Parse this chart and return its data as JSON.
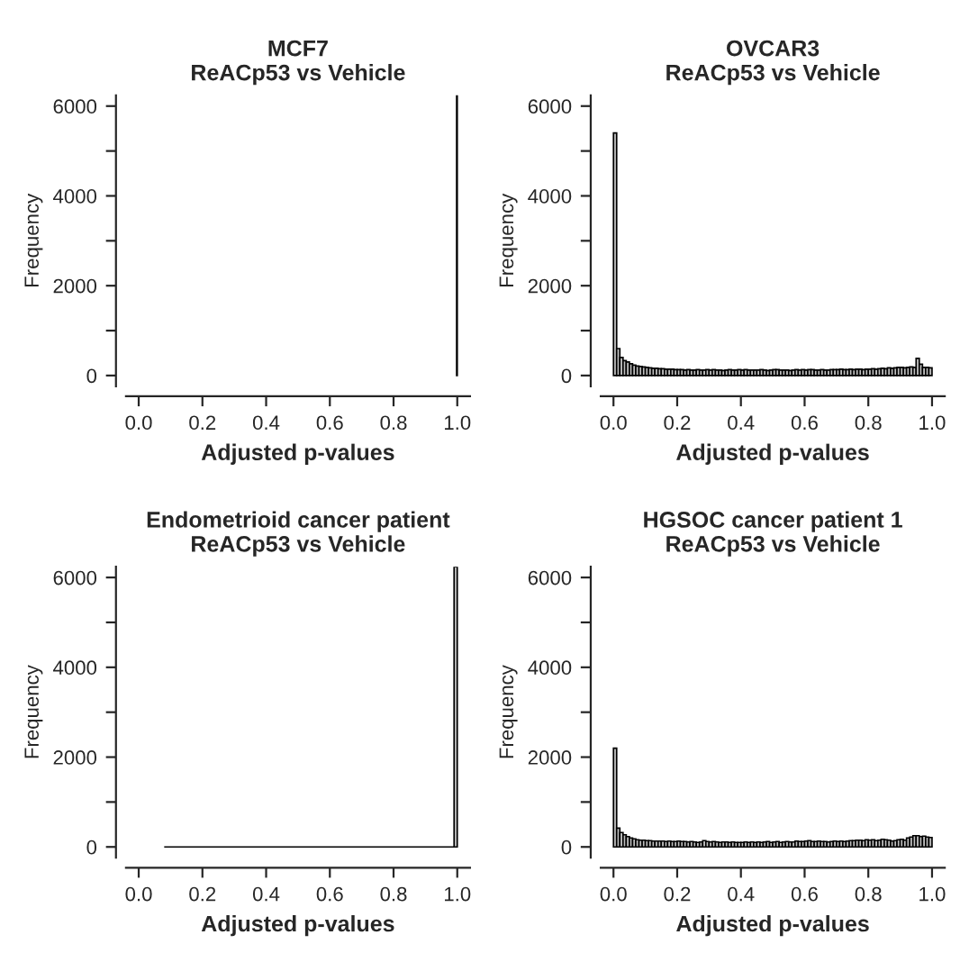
{
  "chart_data": [
    {
      "type": "histogram",
      "title": "MCF7\nReACp53 vs Vehicle",
      "xlabel": "Adjusted p-values",
      "ylabel": "Frequency",
      "color": "#bebebe",
      "bins": [
        0.998,
        1.0
      ],
      "values": [
        6240
      ],
      "xlim": [
        -0.04,
        1.04
      ],
      "ylim": [
        -240,
        6240
      ],
      "xticks": [
        {
          "value": 0,
          "label": "0.0"
        },
        {
          "value": 0.2,
          "label": "0.2"
        },
        {
          "value": 0.4,
          "label": "0.4"
        },
        {
          "value": 0.6,
          "label": "0.6"
        },
        {
          "value": 0.8,
          "label": "0.8"
        },
        {
          "value": 1,
          "label": "1.0"
        }
      ],
      "yticks": [
        0,
        {
          "value": 1000,
          "label": null
        },
        2000,
        {
          "value": 3000,
          "label": null
        },
        4000,
        {
          "value": 5000,
          "label": null
        },
        6000
      ]
    },
    {
      "type": "histogram",
      "title": "OVCAR3\nReACp53 vs Vehicle",
      "xlabel": "Adjusted p-values",
      "ylabel": "Frequency",
      "color": "#bebebe",
      "bins": [
        0,
        0.01,
        0.02,
        0.03,
        0.04,
        0.05,
        0.06,
        0.07,
        0.08,
        0.09,
        0.1,
        0.11,
        0.12,
        0.13,
        0.14,
        0.15,
        0.16,
        0.17,
        0.18,
        0.19,
        0.2,
        0.21,
        0.22,
        0.23,
        0.24,
        0.25,
        0.26,
        0.27,
        0.28,
        0.29,
        0.3,
        0.31,
        0.32,
        0.33,
        0.34,
        0.35,
        0.36,
        0.37,
        0.38,
        0.39,
        0.4,
        0.41,
        0.42,
        0.43,
        0.44,
        0.45,
        0.46,
        0.47,
        0.48,
        0.49,
        0.5,
        0.51,
        0.52,
        0.53,
        0.54,
        0.55,
        0.56,
        0.57,
        0.58,
        0.59,
        0.6,
        0.61,
        0.62,
        0.63,
        0.64,
        0.65,
        0.66,
        0.67,
        0.68,
        0.69,
        0.7,
        0.71,
        0.72,
        0.73,
        0.74,
        0.75,
        0.76,
        0.77,
        0.78,
        0.79,
        0.8,
        0.81,
        0.82,
        0.83,
        0.84,
        0.85,
        0.86,
        0.87,
        0.88,
        0.89,
        0.9,
        0.91,
        0.92,
        0.93,
        0.94,
        0.95,
        0.96,
        0.97,
        0.98,
        0.99,
        1.0
      ],
      "values": [
        5400,
        600,
        400,
        330,
        300,
        260,
        230,
        210,
        200,
        190,
        180,
        170,
        160,
        160,
        150,
        150,
        140,
        140,
        140,
        130,
        130,
        130,
        120,
        130,
        120,
        120,
        130,
        120,
        120,
        130,
        120,
        130,
        120,
        120,
        110,
        120,
        130,
        120,
        120,
        130,
        120,
        130,
        120,
        120,
        120,
        120,
        130,
        120,
        110,
        120,
        130,
        130,
        120,
        120,
        120,
        110,
        120,
        130,
        120,
        130,
        120,
        130,
        130,
        120,
        120,
        130,
        120,
        120,
        130,
        130,
        130,
        140,
        130,
        130,
        140,
        130,
        140,
        140,
        130,
        140,
        140,
        150,
        140,
        150,
        160,
        150,
        170,
        160,
        170,
        180,
        180,
        170,
        180,
        190,
        180,
        380,
        250,
        180,
        180,
        170
      ],
      "xlim": [
        -0.04,
        1.04
      ],
      "ylim": [
        -240,
        6240
      ],
      "xticks": [
        {
          "value": 0,
          "label": "0.0"
        },
        {
          "value": 0.2,
          "label": "0.2"
        },
        {
          "value": 0.4,
          "label": "0.4"
        },
        {
          "value": 0.6,
          "label": "0.6"
        },
        {
          "value": 0.8,
          "label": "0.8"
        },
        {
          "value": 1,
          "label": "1.0"
        }
      ],
      "yticks": [
        0,
        {
          "value": 1000,
          "label": null
        },
        2000,
        {
          "value": 3000,
          "label": null
        },
        4000,
        {
          "value": 5000,
          "label": null
        },
        6000
      ]
    },
    {
      "type": "histogram",
      "title": "Endometrioid cancer patient\nReACp53 vs Vehicle",
      "xlabel": "Adjusted p-values",
      "ylabel": "Frequency",
      "colors": [
        "#000000",
        "#bebebe"
      ],
      "bins": [
        0.08,
        0.99,
        1.0
      ],
      "values": [
        0,
        6240
      ],
      "xlim": [
        -0.04,
        1.04
      ],
      "ylim": [
        -240,
        6240
      ],
      "xticks": [
        {
          "value": 0,
          "label": "0.0"
        },
        {
          "value": 0.2,
          "label": "0.2"
        },
        {
          "value": 0.4,
          "label": "0.4"
        },
        {
          "value": 0.6,
          "label": "0.6"
        },
        {
          "value": 0.8,
          "label": "0.8"
        },
        {
          "value": 1,
          "label": "1.0"
        }
      ],
      "yticks": [
        0,
        {
          "value": 1000,
          "label": null
        },
        2000,
        {
          "value": 3000,
          "label": null
        },
        4000,
        {
          "value": 5000,
          "label": null
        },
        6000
      ]
    },
    {
      "type": "histogram",
      "title": "HGSOC cancer patient 1\nReACp53 vs Vehicle",
      "xlabel": "Adjusted p-values",
      "ylabel": "Frequency",
      "color": "#bebebe",
      "bins": [
        0,
        0.01,
        0.02,
        0.03,
        0.04,
        0.05,
        0.06,
        0.07,
        0.08,
        0.09,
        0.1,
        0.11,
        0.12,
        0.13,
        0.14,
        0.15,
        0.16,
        0.17,
        0.18,
        0.19,
        0.2,
        0.21,
        0.22,
        0.23,
        0.24,
        0.25,
        0.26,
        0.27,
        0.28,
        0.29,
        0.3,
        0.31,
        0.32,
        0.33,
        0.34,
        0.35,
        0.36,
        0.37,
        0.38,
        0.39,
        0.4,
        0.41,
        0.42,
        0.43,
        0.44,
        0.45,
        0.46,
        0.47,
        0.48,
        0.49,
        0.5,
        0.51,
        0.52,
        0.53,
        0.54,
        0.55,
        0.56,
        0.57,
        0.58,
        0.59,
        0.6,
        0.61,
        0.62,
        0.63,
        0.64,
        0.65,
        0.66,
        0.67,
        0.68,
        0.69,
        0.7,
        0.71,
        0.72,
        0.73,
        0.74,
        0.75,
        0.76,
        0.77,
        0.78,
        0.79,
        0.8,
        0.81,
        0.82,
        0.83,
        0.84,
        0.85,
        0.86,
        0.87,
        0.88,
        0.89,
        0.9,
        0.91,
        0.92,
        0.93,
        0.94,
        0.95,
        0.96,
        0.97,
        0.98,
        0.99,
        1.0
      ],
      "values": [
        2200,
        420,
        320,
        270,
        230,
        200,
        180,
        160,
        150,
        150,
        140,
        140,
        130,
        130,
        130,
        130,
        120,
        130,
        120,
        120,
        130,
        120,
        120,
        110,
        120,
        110,
        100,
        110,
        140,
        120,
        110,
        120,
        110,
        100,
        110,
        110,
        100,
        110,
        100,
        100,
        100,
        110,
        100,
        110,
        100,
        110,
        100,
        110,
        120,
        100,
        110,
        120,
        100,
        110,
        120,
        110,
        110,
        130,
        120,
        120,
        130,
        140,
        120,
        120,
        130,
        120,
        120,
        110,
        120,
        130,
        120,
        130,
        120,
        130,
        140,
        140,
        150,
        150,
        140,
        160,
        150,
        160,
        140,
        150,
        170,
        160,
        150,
        130,
        140,
        160,
        170,
        150,
        200,
        220,
        250,
        250,
        230,
        240,
        220,
        210
      ],
      "xlim": [
        -0.04,
        1.04
      ],
      "ylim": [
        -240,
        6240
      ],
      "xticks": [
        {
          "value": 0,
          "label": "0.0"
        },
        {
          "value": 0.2,
          "label": "0.2"
        },
        {
          "value": 0.4,
          "label": "0.4"
        },
        {
          "value": 0.6,
          "label": "0.6"
        },
        {
          "value": 0.8,
          "label": "0.8"
        },
        {
          "value": 1,
          "label": "1.0"
        }
      ],
      "yticks": [
        0,
        {
          "value": 1000,
          "label": null
        },
        2000,
        {
          "value": 3000,
          "label": null
        },
        4000,
        {
          "value": 5000,
          "label": null
        },
        6000
      ]
    }
  ]
}
